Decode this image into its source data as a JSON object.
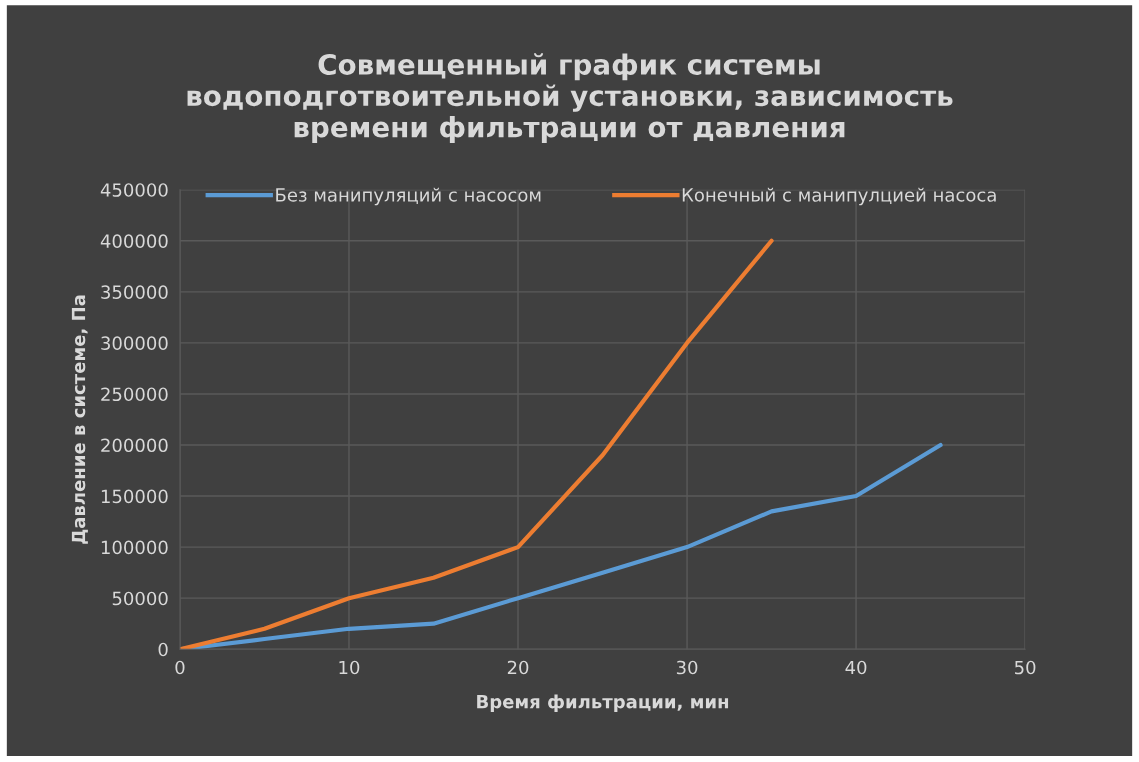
{
  "chart_data": {
    "type": "line",
    "title": "Совмещенный график системы водоподготвоительной установки, зависимость времени фильтрации от давления",
    "xlabel": "Время фильтрации, мин",
    "ylabel": "Давление в системе, Па",
    "series": [
      {
        "name": "Без манипуляций с насосом",
        "color": "#5b9bd5",
        "x": [
          0,
          5,
          10,
          15,
          20,
          25,
          30,
          35,
          40,
          45
        ],
        "values": [
          0,
          10000,
          20000,
          25000,
          50000,
          75000,
          100000,
          135000,
          150000,
          200000
        ]
      },
      {
        "name": "Конечный с манипулцией насоса",
        "color": "#ed7d31",
        "x": [
          0,
          5,
          10,
          15,
          20,
          25,
          30,
          35
        ],
        "values": [
          0,
          20000,
          50000,
          70000,
          100000,
          190000,
          300000,
          400000
        ]
      }
    ],
    "xlim": [
      0,
      50
    ],
    "xticks": [
      0,
      10,
      20,
      30,
      40,
      50
    ],
    "ylim": [
      0,
      450000
    ],
    "yticks": [
      0,
      50000,
      100000,
      150000,
      200000,
      250000,
      300000,
      350000,
      400000,
      450000
    ],
    "grid": true,
    "legend": "top",
    "marker": "none",
    "line_style": "solid"
  }
}
